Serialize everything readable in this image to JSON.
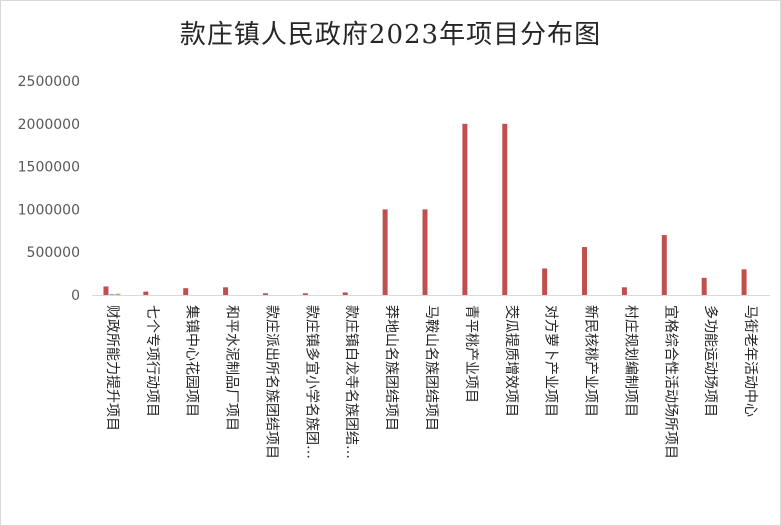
{
  "chart_data": {
    "type": "bar",
    "title": "款庄镇人民政府2023年项目分布图",
    "xlabel": "",
    "ylabel": "",
    "ylim": [
      0,
      2500000
    ],
    "yticks": [
      "0",
      "500000",
      "1000000",
      "1500000",
      "2000000",
      "2500000"
    ],
    "grid": false,
    "legend": "none",
    "categories": [
      "财政所能力提升项目",
      "七个专项行动项目",
      "集镇中心花园项目",
      "和平水泥制品厂项目",
      "款庄派出所名族团结项目",
      "款庄镇多宜小学名族团…",
      "款庄镇白龙寺名族团结…",
      "莽地山名族团结项目",
      "马鞍山名族团结项目",
      "青平桃产业项目",
      "茭瓜提质增效项目",
      "对方萝卜产业项目",
      "新民核桃产业项目",
      "村庄规划编制项目",
      "宜格综合性活动场所项目",
      "多功能运动场项目",
      "马街老年活动中心"
    ],
    "series": [
      {
        "name": "",
        "color": "#c0504d",
        "values": [
          100000,
          40000,
          80000,
          90000,
          20000,
          20000,
          30000,
          1000000,
          1000000,
          2000000,
          2000000,
          310000,
          560000,
          90000,
          700000,
          200000,
          300000
        ]
      },
      {
        "name": "",
        "color": "#4f81bd",
        "values": [
          8000,
          0,
          0,
          0,
          0,
          0,
          0,
          0,
          0,
          0,
          0,
          0,
          0,
          0,
          0,
          0,
          0
        ]
      },
      {
        "name": "",
        "color": "#9bbb59",
        "values": [
          15000,
          0,
          0,
          0,
          0,
          0,
          0,
          0,
          0,
          0,
          0,
          0,
          0,
          0,
          0,
          0,
          0
        ]
      }
    ]
  }
}
